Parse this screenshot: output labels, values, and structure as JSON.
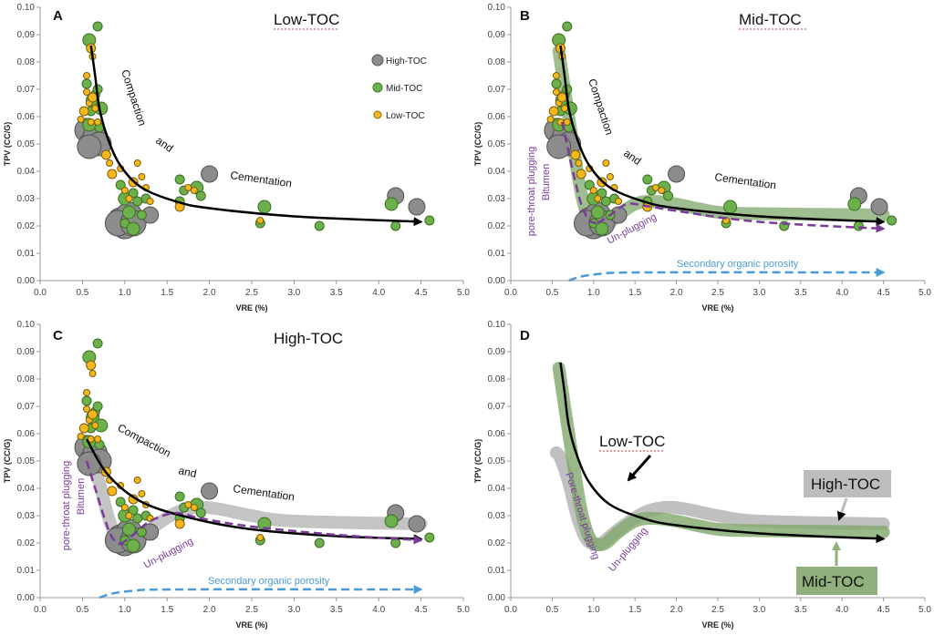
{
  "chart_data": [
    {
      "panel": "A",
      "title": "Low-TOC",
      "type": "scatter",
      "xlabel": "VRE (%)",
      "ylabel": "TPV (CC/G)",
      "xlim": [
        0,
        5
      ],
      "ylim": [
        0,
        0.1
      ],
      "xticks": [
        "0.0",
        "0.5",
        "1.0",
        "1.5",
        "2.0",
        "2.5",
        "3.0",
        "3.5",
        "4.0",
        "4.5",
        "5.0"
      ],
      "yticks": [
        "0.00",
        "0.01",
        "0.02",
        "0.03",
        "0.04",
        "0.05",
        "0.06",
        "0.07",
        "0.08",
        "0.09",
        "0.10"
      ],
      "legend": [
        "High-TOC",
        "Mid-TOC",
        "Low-TOC"
      ],
      "annotations": [
        "Compaction",
        "and",
        "Cementation"
      ]
    },
    {
      "panel": "B",
      "title": "Mid-TOC",
      "type": "scatter",
      "xlabel": "VRE (%)",
      "ylabel": "TPV (CC/G)",
      "xlim": [
        0,
        5
      ],
      "ylim": [
        0,
        0.1
      ],
      "xticks": [
        "0.0",
        "0.5",
        "1.0",
        "1.5",
        "2.0",
        "2.5",
        "3.0",
        "3.5",
        "4.0",
        "4.5",
        "5.0"
      ],
      "yticks": [
        "0.00",
        "0.01",
        "0.02",
        "0.03",
        "0.04",
        "0.05",
        "0.06",
        "0.07",
        "0.08",
        "0.09",
        "0.10"
      ],
      "annotations": [
        "Compaction",
        "and",
        "Cementation",
        "Bitumen",
        "pore-throat plugging",
        "Un-plugging",
        "Secondary organic porosity"
      ]
    },
    {
      "panel": "C",
      "title": "High-TOC",
      "type": "scatter",
      "xlabel": "VRE (%)",
      "ylabel": "TPV (CC/G)",
      "xlim": [
        0,
        5
      ],
      "ylim": [
        0,
        0.1
      ],
      "xticks": [
        "0.0",
        "0.5",
        "1.0",
        "1.5",
        "2.0",
        "2.5",
        "3.0",
        "3.5",
        "4.0",
        "4.5",
        "5.0"
      ],
      "yticks": [
        "0.00",
        "0.01",
        "0.02",
        "0.03",
        "0.04",
        "0.05",
        "0.06",
        "0.07",
        "0.08",
        "0.09",
        "0.10"
      ],
      "annotations": [
        "Compaction",
        "and",
        "Cementation",
        "Bitumen",
        "pore-throat plugging",
        "Un-plugging",
        "Secondary organic porosity"
      ]
    },
    {
      "panel": "D",
      "title": "",
      "type": "line",
      "xlabel": "VRE (%)",
      "ylabel": "TPV (CC/G)",
      "xlim": [
        0,
        5
      ],
      "ylim": [
        0,
        0.1
      ],
      "xticks": [
        "0.0",
        "0.5",
        "1.0",
        "1.5",
        "2.0",
        "2.5",
        "3.0",
        "3.5",
        "4.0",
        "4.5",
        "5.0"
      ],
      "yticks": [
        "0.00",
        "0.01",
        "0.02",
        "0.03",
        "0.04",
        "0.05",
        "0.06",
        "0.07",
        "0.08",
        "0.09",
        "0.10"
      ],
      "annotations": [
        "Low-TOC",
        "High-TOC",
        "Mid-TOC",
        "Pore-throat plugging",
        "Un-plugging"
      ]
    }
  ],
  "series": {
    "compaction": [
      [
        0.6,
        0.086
      ],
      [
        0.65,
        0.075
      ],
      [
        0.7,
        0.063
      ],
      [
        0.8,
        0.052
      ],
      [
        0.95,
        0.042
      ],
      [
        1.2,
        0.034
      ],
      [
        1.6,
        0.029
      ],
      [
        2.0,
        0.0265
      ],
      [
        3.0,
        0.0235
      ],
      [
        4.5,
        0.0215
      ]
    ],
    "mid_trend": [
      [
        0.58,
        0.084
      ],
      [
        0.65,
        0.07
      ],
      [
        0.75,
        0.05
      ],
      [
        0.85,
        0.032
      ],
      [
        0.95,
        0.022
      ],
      [
        1.05,
        0.0195
      ],
      [
        1.15,
        0.02
      ],
      [
        1.3,
        0.024
      ],
      [
        1.5,
        0.028
      ],
      [
        1.7,
        0.029
      ],
      [
        2.0,
        0.028
      ],
      [
        2.5,
        0.025
      ],
      [
        3.0,
        0.0245
      ],
      [
        4.5,
        0.024
      ]
    ],
    "high_trend": [
      [
        0.55,
        0.053
      ],
      [
        0.6,
        0.051
      ],
      [
        0.7,
        0.042
      ],
      [
        0.8,
        0.03
      ],
      [
        0.9,
        0.022
      ],
      [
        1.0,
        0.0195
      ],
      [
        1.1,
        0.02
      ],
      [
        1.3,
        0.025
      ],
      [
        1.6,
        0.031
      ],
      [
        1.85,
        0.033
      ],
      [
        2.1,
        0.0325
      ],
      [
        2.5,
        0.03
      ],
      [
        3.0,
        0.028
      ],
      [
        4.5,
        0.027
      ]
    ],
    "bitumen_B": [
      [
        0.62,
        0.058
      ],
      [
        0.75,
        0.04
      ],
      [
        0.85,
        0.028
      ],
      [
        0.95,
        0.022
      ],
      [
        1.05,
        0.021
      ]
    ],
    "unplug_B": [
      [
        1.05,
        0.021
      ],
      [
        1.2,
        0.024
      ],
      [
        1.4,
        0.028
      ],
      [
        1.6,
        0.0275
      ],
      [
        2.0,
        0.0255
      ],
      [
        3.0,
        0.0215
      ],
      [
        4.5,
        0.019
      ]
    ],
    "bitumen_C": [
      [
        0.55,
        0.05
      ],
      [
        0.65,
        0.04
      ],
      [
        0.75,
        0.03
      ],
      [
        0.85,
        0.022
      ],
      [
        0.95,
        0.0195
      ]
    ],
    "unplug_C": [
      [
        0.95,
        0.0195
      ],
      [
        1.1,
        0.023
      ],
      [
        1.3,
        0.028
      ],
      [
        1.6,
        0.031
      ],
      [
        1.9,
        0.029
      ],
      [
        2.5,
        0.026
      ],
      [
        3.5,
        0.023
      ],
      [
        4.5,
        0.021
      ]
    ],
    "secondary": [
      [
        0.7,
        0.0
      ],
      [
        0.85,
        0.0015
      ],
      [
        1.1,
        0.0025
      ],
      [
        1.6,
        0.003
      ],
      [
        4.5,
        0.003
      ]
    ],
    "highTOC_pts": [
      [
        0.55,
        0.055
      ],
      [
        0.6,
        0.05
      ],
      [
        0.65,
        0.053
      ],
      [
        0.7,
        0.05
      ],
      [
        0.58,
        0.049
      ],
      [
        0.95,
        0.022
      ],
      [
        1.0,
        0.02
      ],
      [
        1.05,
        0.024
      ],
      [
        0.92,
        0.021
      ],
      [
        1.1,
        0.021
      ],
      [
        1.3,
        0.024
      ],
      [
        2.0,
        0.039
      ],
      [
        4.2,
        0.031
      ],
      [
        4.45,
        0.027
      ]
    ],
    "midTOC_pts": [
      [
        0.58,
        0.088
      ],
      [
        0.68,
        0.093
      ],
      [
        0.55,
        0.072
      ],
      [
        0.62,
        0.066
      ],
      [
        0.6,
        0.062
      ],
      [
        0.65,
        0.068
      ],
      [
        0.58,
        0.057
      ],
      [
        0.7,
        0.056
      ],
      [
        0.95,
        0.035
      ],
      [
        1.0,
        0.03
      ],
      [
        1.1,
        0.032
      ],
      [
        1.15,
        0.029
      ],
      [
        1.05,
        0.025
      ],
      [
        1.2,
        0.024
      ],
      [
        1.0,
        0.021
      ],
      [
        1.1,
        0.019
      ],
      [
        1.65,
        0.037
      ],
      [
        1.7,
        0.033
      ],
      [
        1.85,
        0.034
      ],
      [
        1.9,
        0.031
      ],
      [
        1.65,
        0.029
      ],
      [
        2.65,
        0.027
      ],
      [
        2.6,
        0.021
      ],
      [
        3.3,
        0.02
      ],
      [
        4.15,
        0.028
      ],
      [
        4.2,
        0.02
      ],
      [
        4.6,
        0.022
      ],
      [
        0.72,
        0.063
      ],
      [
        0.68,
        0.07
      ],
      [
        1.25,
        0.03
      ]
    ],
    "lowTOC_pts": [
      [
        0.6,
        0.085
      ],
      [
        0.62,
        0.082
      ],
      [
        0.55,
        0.069
      ],
      [
        0.58,
        0.065
      ],
      [
        0.52,
        0.062
      ],
      [
        0.48,
        0.059
      ],
      [
        0.6,
        0.058
      ],
      [
        0.65,
        0.063
      ],
      [
        0.62,
        0.067
      ],
      [
        0.68,
        0.058
      ],
      [
        0.55,
        0.075
      ],
      [
        0.82,
        0.043
      ],
      [
        0.85,
        0.039
      ],
      [
        0.95,
        0.041
      ],
      [
        1.0,
        0.033
      ],
      [
        1.05,
        0.03
      ],
      [
        1.1,
        0.036
      ],
      [
        1.2,
        0.038
      ],
      [
        1.25,
        0.034
      ],
      [
        1.15,
        0.043
      ],
      [
        1.65,
        0.027
      ],
      [
        1.75,
        0.034
      ],
      [
        1.82,
        0.033
      ],
      [
        2.6,
        0.022
      ],
      [
        0.78,
        0.046
      ],
      [
        1.3,
        0.029
      ]
    ]
  }
}
